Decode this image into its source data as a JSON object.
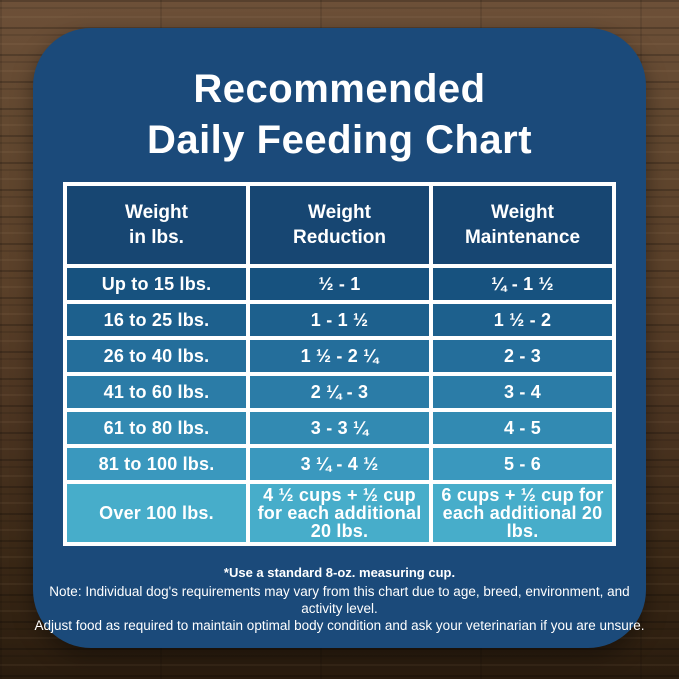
{
  "title": {
    "line1": "Recommended",
    "line2": "Daily Feeding Chart"
  },
  "colors": {
    "card": "#1b4a7a",
    "header": "#174672",
    "border": "#ffffff",
    "text": "#ffffff",
    "wood_base": "#553c28"
  },
  "table": {
    "headers": [
      {
        "line1": "Weight",
        "line2": "in lbs."
      },
      {
        "line1": "Weight",
        "line2": "Reduction"
      },
      {
        "line1": "Weight",
        "line2": "Maintenance"
      }
    ],
    "row_colors": [
      "#17527f",
      "#1d608d",
      "#246e9b",
      "#2b7ca7",
      "#328ab2",
      "#3a98be",
      "#47adca"
    ],
    "rows": [
      {
        "cells": [
          "Up to 15 lbs.",
          "½ - 1",
          "¼ - 1 ½"
        ]
      },
      {
        "cells": [
          "16 to 25 lbs.",
          "1 - 1 ½",
          "1 ½ - 2"
        ]
      },
      {
        "cells": [
          "26 to 40 lbs.",
          "1 ½ - 2 ¼",
          "2 - 3"
        ]
      },
      {
        "cells": [
          "41 to 60 lbs.",
          "2 ¼ - 3",
          "3 - 4"
        ]
      },
      {
        "cells": [
          "61 to 80 lbs.",
          "3 - 3 ¼",
          "4 - 5"
        ]
      },
      {
        "cells": [
          "81 to 100 lbs.",
          "3 ¼ - 4 ½",
          "5 - 6"
        ]
      },
      {
        "cells": [
          "Over 100 lbs.",
          "4 ½ cups + ½ cup for each additional 20 lbs.",
          "6 cups + ½ cup for each additional 20 lbs."
        ]
      }
    ]
  },
  "footer": {
    "measuring_note": "*Use a standard 8-oz. measuring cup.",
    "note_line1": "Note: Individual dog's requirements may vary from this chart due to age, breed, environment, and activity level.",
    "note_line2": "Adjust food as required to maintain optimal body condition and ask your veterinarian if you are unsure."
  },
  "chart_data": {
    "type": "table",
    "title": "Recommended Daily Feeding Chart",
    "columns": [
      "Weight in lbs.",
      "Weight Reduction",
      "Weight Maintenance"
    ],
    "rows": [
      [
        "Up to 15 lbs.",
        "½ - 1",
        "¼ - 1 ½"
      ],
      [
        "16 to 25 lbs.",
        "1 - 1 ½",
        "1 ½ - 2"
      ],
      [
        "26 to 40 lbs.",
        "1 ½ - 2 ¼",
        "2 - 3"
      ],
      [
        "41 to 60 lbs.",
        "2 ¼ - 3",
        "3 - 4"
      ],
      [
        "61 to 80 lbs.",
        "3 - 3 ¼",
        "4 - 5"
      ],
      [
        "81 to 100 lbs.",
        "3 ¼ - 4 ½",
        "5 - 6"
      ],
      [
        "Over 100 lbs.",
        "4 ½ cups + ½ cup for each additional 20 lbs.",
        "6 cups + ½ cup for each additional 20 lbs."
      ]
    ],
    "footnote": "*Use a standard 8-oz. measuring cup.",
    "layout_hints": {
      "row_shading": "dark navy to light cyan gradient, one shade per row",
      "grid": "white 4px borders"
    }
  }
}
